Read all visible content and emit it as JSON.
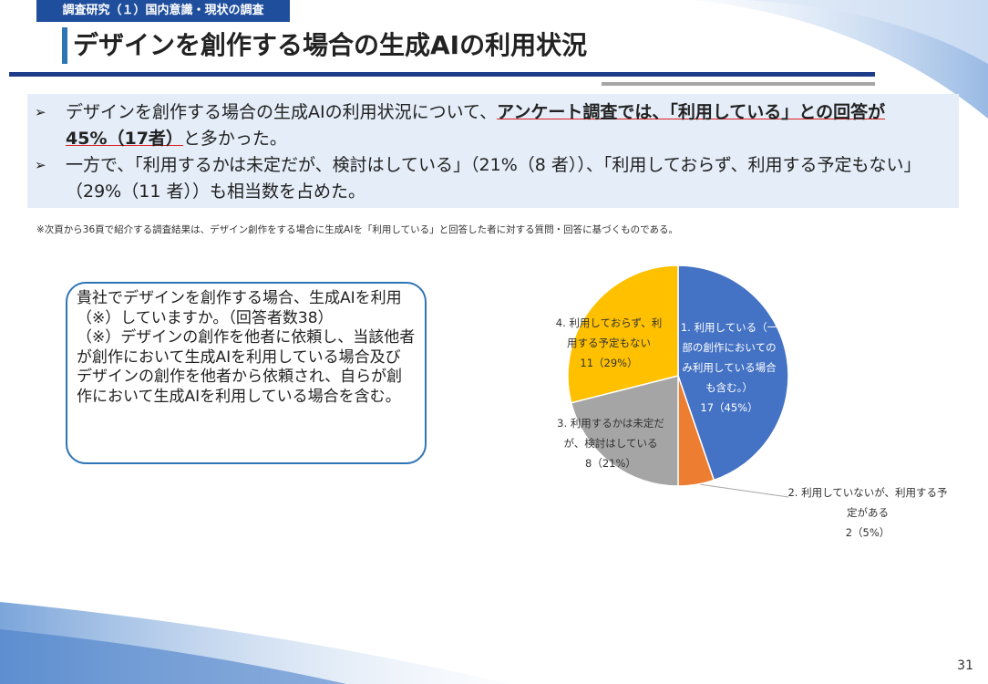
{
  "header": {
    "tag": "調査研究（１）国内意識・現状の調査",
    "title": "デザインを創作する場合の生成AIの利用状況"
  },
  "bullets": [
    {
      "parts": [
        "デザインを創作する場合の生成AIの利用状況について、",
        "アンケート調査では、「利用している」との回答が45%（17者）",
        "と多かった。"
      ]
    },
    {
      "parts": [
        "一方で、「利用するかは未定だが、検討はしている」（21%（8 者））、「利用しておらず、利用する予定もない」（29%（11 者））も相当数を占めた。"
      ]
    }
  ],
  "note": "※次頁から36頁で紹介する調査結果は、デザイン創作をする場合に生成AIを「利用している」と回答した者に対する質問・回答に基づくものである。",
  "question": "貴社でデザインを創作する場合、生成AIを利用（※）していますか。（回答者数38）\n（※）デザインの創作を他者に依頼し、当該他者が創作において生成AIを利用している場合及びデザインの創作を他者から依頼され、自らが創作において生成AIを利用している場合を含む。",
  "chart_data": {
    "type": "pie",
    "categories": [
      "1. 利用している（一部の創作においてのみ利用している場合も含む。）",
      "2. 利用していないが、利用する予定がある",
      "3. 利用するかは未定だが、検討はしている",
      "4. 利用しておらず、利用する予定もない"
    ],
    "values": [
      17,
      2,
      8,
      11
    ],
    "value_labels": [
      "17（45%）",
      "2（5%）",
      "8（21%）",
      "11（29%）"
    ],
    "colors": [
      "#4472c4",
      "#ed7d31",
      "#a5a5a5",
      "#ffc000"
    ]
  },
  "page_number": "31"
}
